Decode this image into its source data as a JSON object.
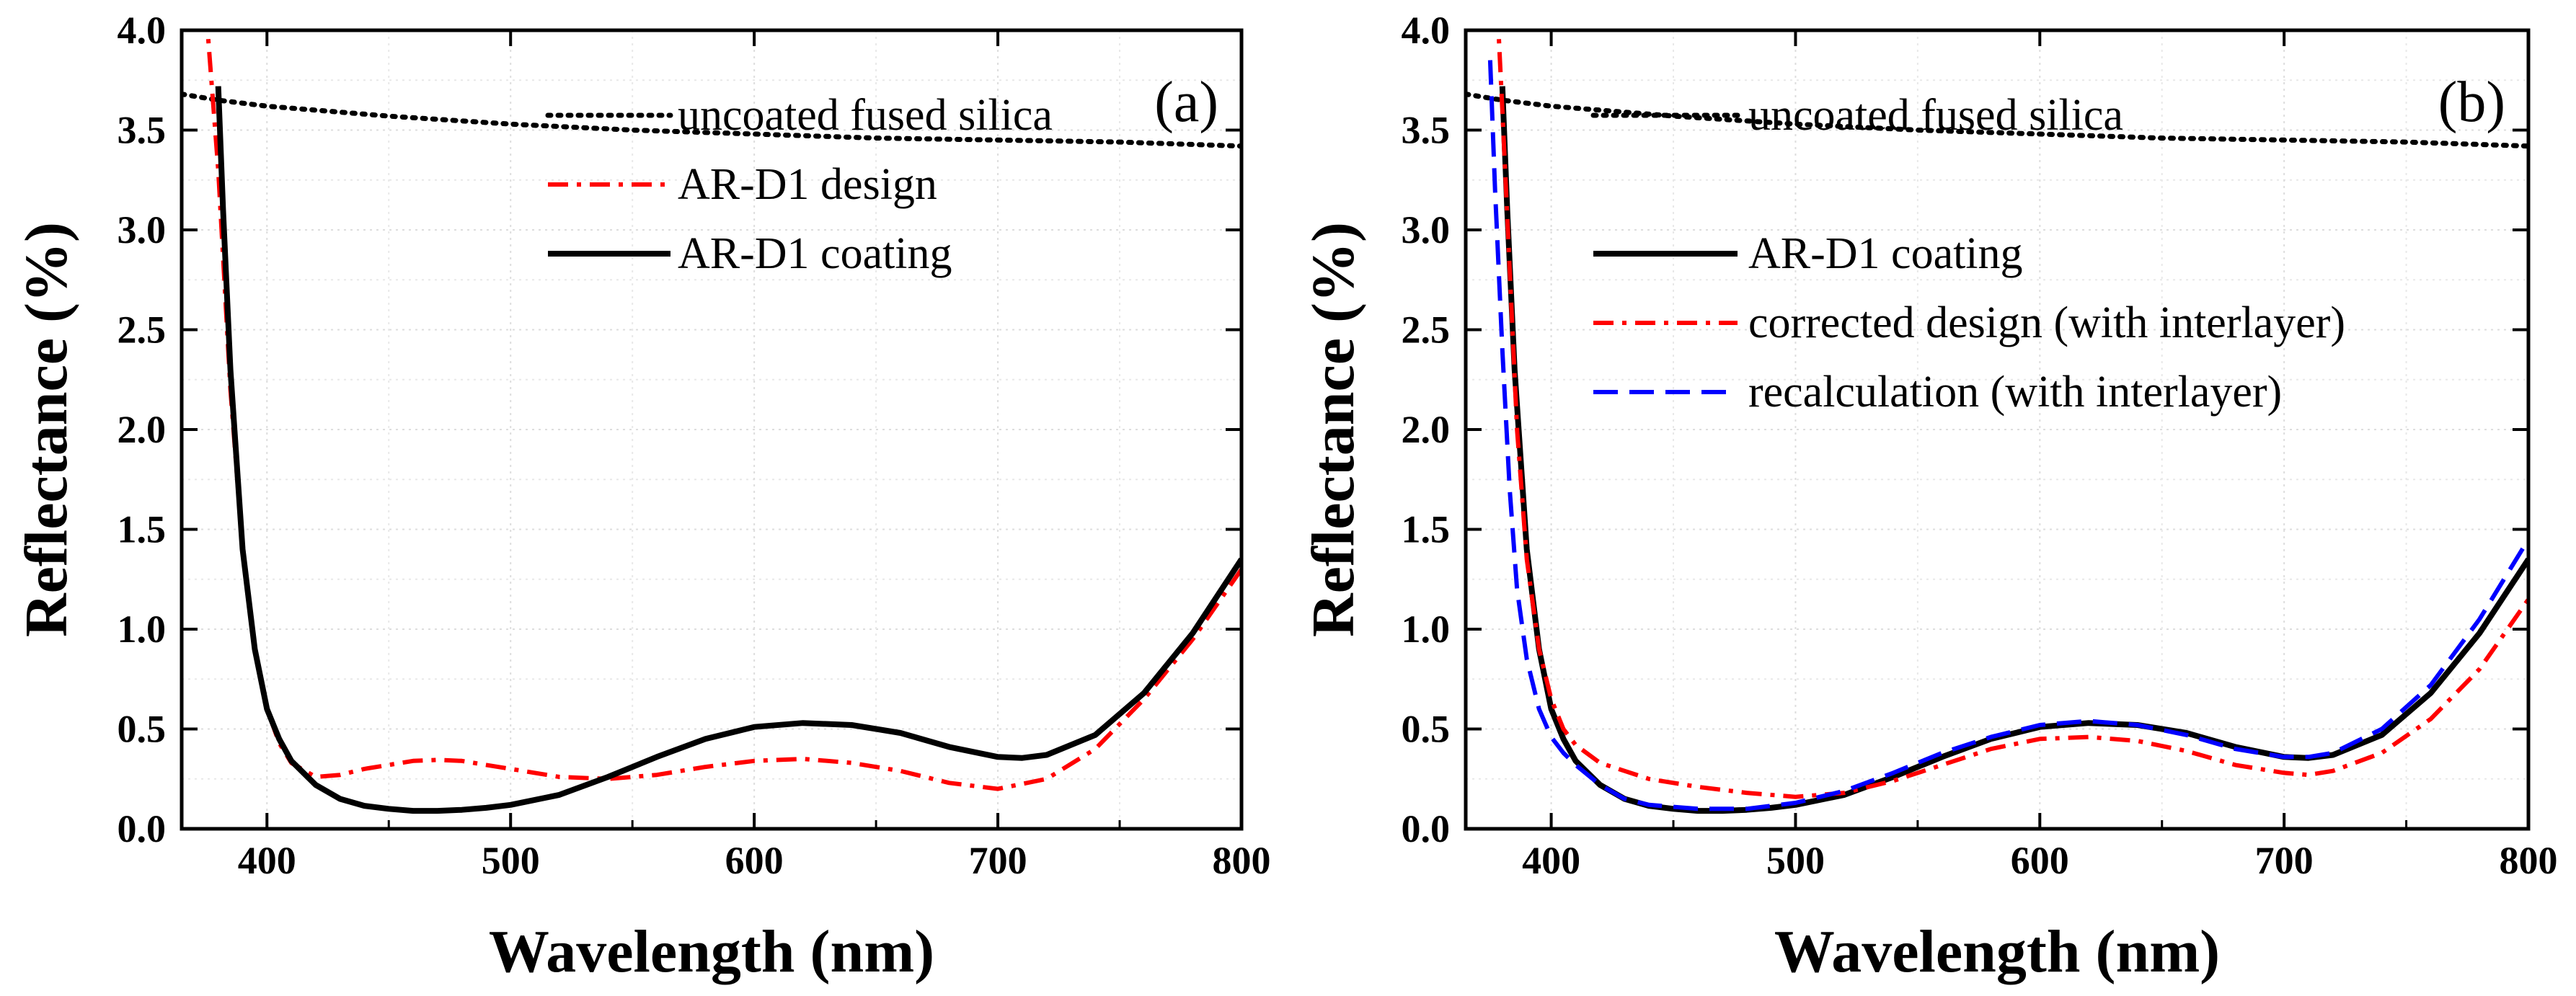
{
  "chart_data": [
    {
      "type": "line",
      "panel_label": "(a)",
      "xlabel": "Wavelength (nm)",
      "ylabel": "Reflectance (%)",
      "xlim": [
        365,
        800
      ],
      "ylim": [
        0,
        4.0
      ],
      "xticks": [
        400,
        500,
        600,
        700,
        800
      ],
      "yticks": [
        "0.0",
        "0.5",
        "1.0",
        "1.5",
        "2.0",
        "2.5",
        "3.0",
        "3.5",
        "4.0"
      ],
      "grid": true,
      "legend_position": "center-right",
      "series": [
        {
          "name": "uncoated fused silica",
          "style": "dotted",
          "color": "#000000",
          "x": [
            365,
            380,
            400,
            450,
            500,
            550,
            600,
            650,
            700,
            750,
            800
          ],
          "y": [
            3.68,
            3.65,
            3.62,
            3.57,
            3.53,
            3.5,
            3.48,
            3.46,
            3.45,
            3.44,
            3.42
          ]
        },
        {
          "name": "AR-D1 design",
          "style": "dashdot",
          "color": "#ff0000",
          "x": [
            375,
            380,
            385,
            390,
            395,
            400,
            405,
            410,
            420,
            430,
            440,
            450,
            460,
            470,
            480,
            490,
            500,
            520,
            540,
            560,
            580,
            600,
            620,
            640,
            660,
            680,
            700,
            720,
            740,
            760,
            780,
            800
          ],
          "y": [
            4.1,
            3.3,
            2.2,
            1.4,
            0.9,
            0.6,
            0.43,
            0.33,
            0.26,
            0.27,
            0.3,
            0.32,
            0.34,
            0.345,
            0.34,
            0.32,
            0.3,
            0.26,
            0.25,
            0.27,
            0.31,
            0.34,
            0.35,
            0.33,
            0.29,
            0.23,
            0.2,
            0.25,
            0.4,
            0.65,
            0.95,
            1.3
          ]
        },
        {
          "name": "AR-D1 coating",
          "style": "solid",
          "color": "#000000",
          "x": [
            380,
            382,
            385,
            390,
            395,
            400,
            405,
            410,
            420,
            430,
            440,
            450,
            460,
            470,
            480,
            490,
            500,
            520,
            540,
            560,
            580,
            600,
            620,
            640,
            660,
            680,
            700,
            710,
            720,
            740,
            760,
            780,
            800
          ],
          "y": [
            3.72,
            3.1,
            2.3,
            1.4,
            0.9,
            0.6,
            0.45,
            0.34,
            0.22,
            0.15,
            0.115,
            0.1,
            0.09,
            0.09,
            0.095,
            0.105,
            0.12,
            0.17,
            0.26,
            0.36,
            0.45,
            0.51,
            0.53,
            0.52,
            0.48,
            0.41,
            0.36,
            0.355,
            0.37,
            0.47,
            0.68,
            0.98,
            1.35
          ]
        }
      ]
    },
    {
      "type": "line",
      "panel_label": "(b)",
      "xlabel": "Wavelength (nm)",
      "ylabel": "Reflectance (%)",
      "xlim": [
        365,
        800
      ],
      "ylim": [
        0,
        4.0
      ],
      "xticks": [
        400,
        500,
        600,
        700,
        800
      ],
      "yticks": [
        "0.0",
        "0.5",
        "1.0",
        "1.5",
        "2.0",
        "2.5",
        "3.0",
        "3.5",
        "4.0"
      ],
      "grid": true,
      "legend_position": "center-right",
      "series": [
        {
          "name": "uncoated fused silica",
          "style": "dotted",
          "color": "#000000",
          "x": [
            365,
            380,
            400,
            450,
            500,
            550,
            600,
            650,
            700,
            750,
            800
          ],
          "y": [
            3.68,
            3.65,
            3.62,
            3.57,
            3.53,
            3.5,
            3.48,
            3.46,
            3.45,
            3.44,
            3.42
          ]
        },
        {
          "name": "AR-D1 coating",
          "style": "solid",
          "color": "#000000",
          "x": [
            380,
            382,
            385,
            390,
            395,
            400,
            405,
            410,
            420,
            430,
            440,
            450,
            460,
            470,
            480,
            490,
            500,
            520,
            540,
            560,
            580,
            600,
            620,
            640,
            660,
            680,
            700,
            710,
            720,
            740,
            760,
            780,
            800
          ],
          "y": [
            3.72,
            3.1,
            2.3,
            1.4,
            0.9,
            0.6,
            0.45,
            0.34,
            0.22,
            0.15,
            0.115,
            0.1,
            0.09,
            0.09,
            0.095,
            0.105,
            0.12,
            0.17,
            0.26,
            0.36,
            0.45,
            0.51,
            0.53,
            0.52,
            0.48,
            0.41,
            0.36,
            0.355,
            0.37,
            0.47,
            0.68,
            0.98,
            1.35
          ]
        },
        {
          "name": "corrected design (with interlayer)",
          "style": "dashdot",
          "color": "#ff0000",
          "x": [
            378,
            380,
            383,
            386,
            390,
            395,
            400,
            405,
            410,
            420,
            440,
            460,
            480,
            500,
            520,
            540,
            560,
            580,
            600,
            620,
            640,
            660,
            680,
            700,
            710,
            720,
            740,
            760,
            780,
            800
          ],
          "y": [
            4.1,
            3.6,
            2.8,
            2.0,
            1.35,
            0.9,
            0.65,
            0.5,
            0.42,
            0.33,
            0.25,
            0.21,
            0.18,
            0.16,
            0.18,
            0.24,
            0.32,
            0.4,
            0.45,
            0.46,
            0.44,
            0.39,
            0.32,
            0.28,
            0.27,
            0.29,
            0.38,
            0.55,
            0.8,
            1.15
          ]
        },
        {
          "name": "recalculation (with interlayer)",
          "style": "dashed",
          "color": "#0000ff",
          "x": [
            375,
            377,
            380,
            383,
            386,
            390,
            395,
            400,
            405,
            410,
            420,
            430,
            440,
            460,
            480,
            500,
            520,
            540,
            560,
            580,
            600,
            620,
            640,
            660,
            680,
            700,
            710,
            720,
            740,
            760,
            780,
            800
          ],
          "y": [
            3.85,
            3.2,
            2.4,
            1.7,
            1.2,
            0.85,
            0.6,
            0.46,
            0.38,
            0.32,
            0.22,
            0.15,
            0.12,
            0.1,
            0.1,
            0.13,
            0.19,
            0.28,
            0.38,
            0.46,
            0.52,
            0.54,
            0.52,
            0.47,
            0.4,
            0.36,
            0.36,
            0.38,
            0.5,
            0.72,
            1.05,
            1.45
          ]
        }
      ]
    }
  ]
}
